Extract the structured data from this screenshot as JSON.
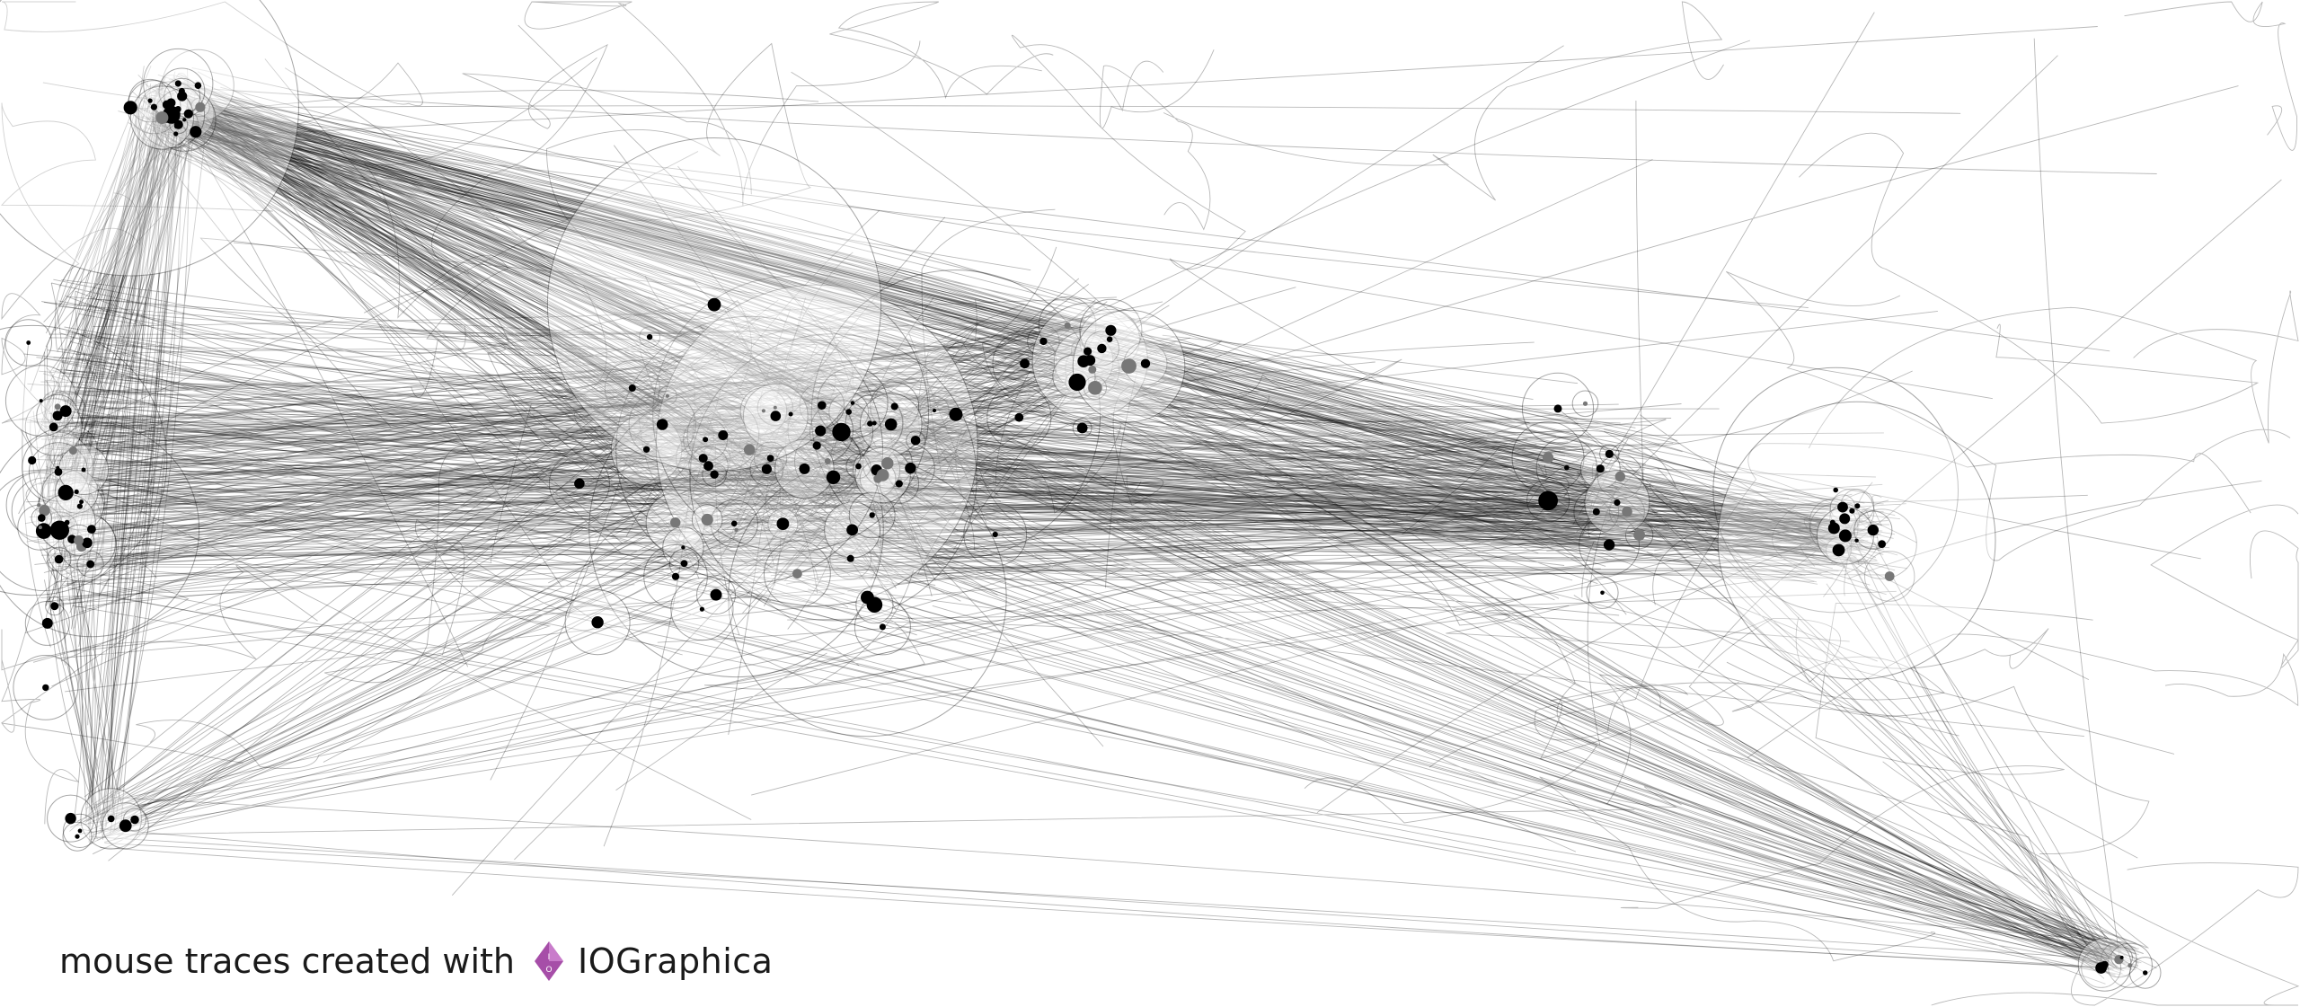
{
  "caption": {
    "prefix": "mouse traces created with",
    "brand": "IOGraphica"
  },
  "logo": {
    "name": "iographica-logo-icon",
    "color": "#a64ea8",
    "color_light": "#c97ccb"
  },
  "colors": {
    "background": "#ffffff",
    "trace": "#000000"
  }
}
